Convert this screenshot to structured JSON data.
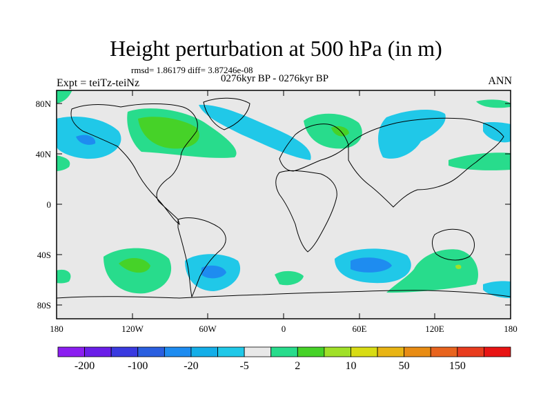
{
  "title": "Height perturbation at 500 hPa (in m)",
  "stats": "rmsd= 1.86179 diff= 3.87246e-08",
  "period": "0276kyr BP - 0276kyr BP",
  "expt": "Expt = teiTz-teiNz",
  "season": "ANN",
  "axes": {
    "lat_ticks": [
      "80N",
      "40N",
      "0",
      "40S",
      "80S"
    ],
    "lon_ticks": [
      "180",
      "120W",
      "60W",
      "0",
      "60E",
      "120E",
      "180"
    ]
  },
  "colorbar": {
    "colors": [
      "#8b1ef0",
      "#6a1ee8",
      "#3a3ae0",
      "#2a5fe0",
      "#1e8cf0",
      "#14aee8",
      "#20c8e8",
      "#e8e8e8",
      "#28dc8c",
      "#46d228",
      "#a0e028",
      "#d8dc14",
      "#e8b414",
      "#e88c14",
      "#e8641e",
      "#e83c1e",
      "#e81414"
    ],
    "labels": [
      "-200",
      "-100",
      "-20",
      "-5",
      "2",
      "10",
      "50",
      "150"
    ]
  }
}
